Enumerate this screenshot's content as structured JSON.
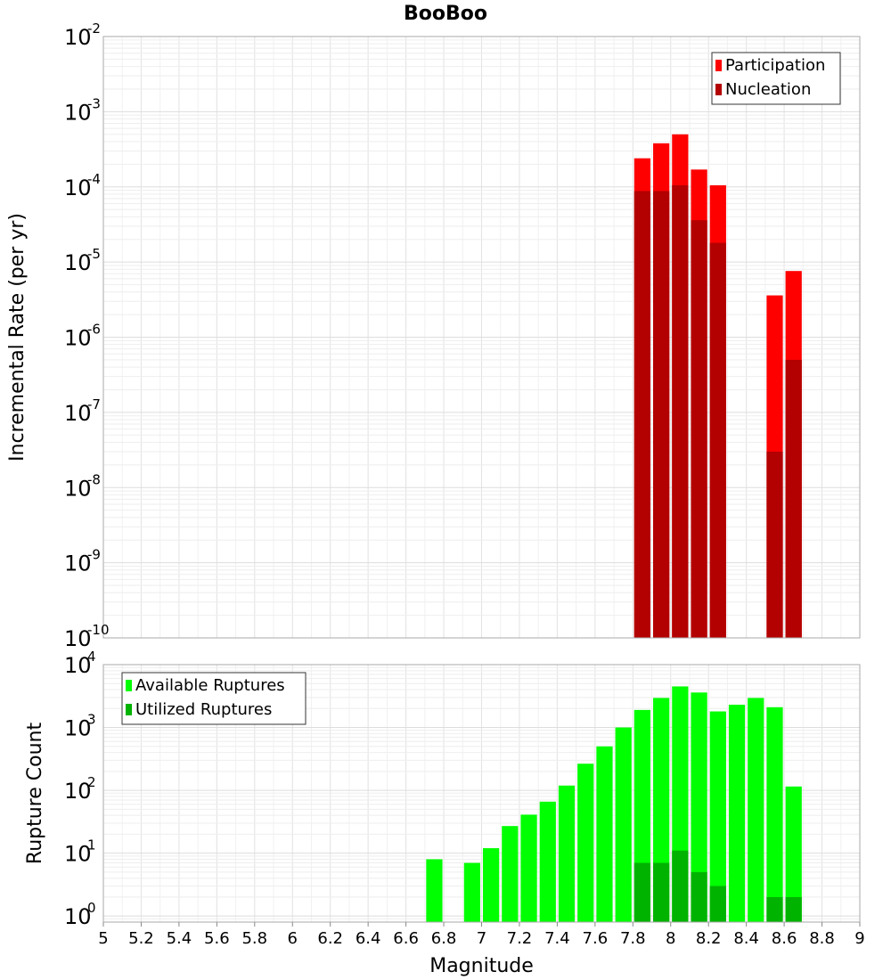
{
  "title": "BooBoo",
  "chart_data": [
    {
      "type": "bar",
      "ylabel": "Incremental Rate (per yr)",
      "xlabel": "",
      "yscale": "log",
      "ylim": [
        1e-10,
        0.01
      ],
      "xlim": [
        5,
        9
      ],
      "grid": true,
      "legend_position": "top-right",
      "y_tick_labels": [
        {
          "base": "10",
          "exp": "-2"
        },
        {
          "base": "10",
          "exp": "-3"
        },
        {
          "base": "10",
          "exp": "-4"
        },
        {
          "base": "10",
          "exp": "-5"
        },
        {
          "base": "10",
          "exp": "-6"
        },
        {
          "base": "10",
          "exp": "-7"
        },
        {
          "base": "10",
          "exp": "-8"
        },
        {
          "base": "10",
          "exp": "-9"
        },
        {
          "base": "10",
          "exp": "-10"
        }
      ],
      "bar_width": 0.1,
      "series": [
        {
          "name": "Participation",
          "color": "#ff0000",
          "x": [
            7.85,
            7.95,
            8.05,
            8.15,
            8.25,
            8.55,
            8.65
          ],
          "values": [
            0.00024,
            0.00038,
            0.0005,
            0.00017,
            0.000105,
            3.6e-06,
            7.6e-06
          ]
        },
        {
          "name": "Nucleation",
          "color": "#b30000",
          "x": [
            7.85,
            7.95,
            8.05,
            8.15,
            8.25,
            8.55,
            8.65
          ],
          "values": [
            8.8e-05,
            8.8e-05,
            0.000105,
            3.6e-05,
            1.8e-05,
            3e-08,
            5e-07
          ]
        }
      ]
    },
    {
      "type": "bar",
      "ylabel": "Rupture Count",
      "xlabel": "Magnitude",
      "yscale": "log",
      "ylim": [
        0.8,
        10000
      ],
      "xlim": [
        5,
        9
      ],
      "grid": true,
      "legend_position": "top-left",
      "y_tick_labels": [
        {
          "base": "10",
          "exp": "4"
        },
        {
          "base": "10",
          "exp": "3"
        },
        {
          "base": "10",
          "exp": "2"
        },
        {
          "base": "10",
          "exp": "1"
        },
        {
          "base": "10",
          "exp": "0"
        }
      ],
      "x_tick_labels": [
        "5",
        "5.2",
        "5.4",
        "5.6",
        "5.8",
        "6",
        "6.2",
        "6.4",
        "6.6",
        "6.8",
        "7",
        "7.2",
        "7.4",
        "7.6",
        "7.8",
        "8",
        "8.2",
        "8.4",
        "8.6",
        "8.8",
        "9"
      ],
      "bar_width": 0.1,
      "series": [
        {
          "name": "Available Ruptures",
          "color": "#00ff00",
          "x": [
            6.75,
            6.95,
            7.05,
            7.15,
            7.25,
            7.35,
            7.45,
            7.55,
            7.65,
            7.75,
            7.85,
            7.95,
            8.05,
            8.15,
            8.25,
            8.35,
            8.45,
            8.55,
            8.65
          ],
          "values": [
            8,
            7,
            12,
            27,
            41,
            66,
            119,
            265,
            500,
            1000,
            1900,
            2950,
            4500,
            3600,
            1800,
            2300,
            2950,
            2100,
            115
          ]
        },
        {
          "name": "Utilized Ruptures",
          "color": "#00b300",
          "x": [
            7.85,
            7.95,
            8.05,
            8.15,
            8.25,
            8.55,
            8.65
          ],
          "values": [
            7,
            7,
            11,
            5,
            3,
            2,
            2
          ]
        }
      ]
    }
  ]
}
